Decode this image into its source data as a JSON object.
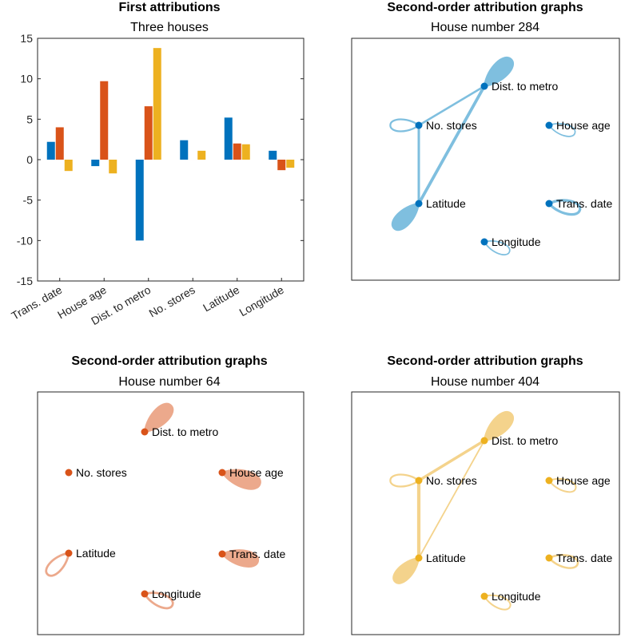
{
  "chart_data": [
    {
      "type": "bar",
      "title": "First attributions",
      "subtitle": "Three houses",
      "categories": [
        "Trans. date",
        "House age",
        "Dist. to metro",
        "No. stores",
        "Latitude",
        "Longitude"
      ],
      "ylim": [
        -15,
        15
      ],
      "yticks": [
        "15",
        "10",
        "5",
        "0",
        "-5",
        "-10",
        "-15"
      ],
      "ytick_values": [
        15,
        10,
        5,
        0,
        -5,
        -10,
        -15
      ],
      "series": [
        {
          "name": "House number 284",
          "color": "#0072BD",
          "values": [
            2.2,
            -0.8,
            -10.0,
            2.4,
            5.2,
            1.1
          ]
        },
        {
          "name": "House number 64",
          "color": "#D95319",
          "values": [
            4.0,
            9.7,
            6.6,
            0.0,
            2.0,
            -1.3
          ]
        },
        {
          "name": "House number 404",
          "color": "#EDB120",
          "values": [
            -1.4,
            -1.7,
            13.8,
            1.1,
            1.9,
            -1.0
          ]
        }
      ]
    },
    {
      "type": "graph",
      "title": "Second-order attribution graphs",
      "subtitle": "House number 284",
      "node_color": "#0072BD",
      "edge_color": "#7FBFDF",
      "nodes": [
        {
          "label": "Dist. to metro",
          "self_weight": 0.9
        },
        {
          "label": "No. stores",
          "self_weight": 0.25
        },
        {
          "label": "House age",
          "self_weight": 0.15
        },
        {
          "label": "Latitude",
          "self_weight": 0.7
        },
        {
          "label": "Trans. date",
          "self_weight": 0.45
        },
        {
          "label": "Longitude",
          "self_weight": 0.15
        }
      ],
      "edges": [
        {
          "from": "Dist. to metro",
          "to": "No. stores",
          "weight": 0.2
        },
        {
          "from": "Dist. to metro",
          "to": "Latitude",
          "weight": 0.35
        },
        {
          "from": "No. stores",
          "to": "Latitude",
          "weight": 0.25
        }
      ]
    },
    {
      "type": "graph",
      "title": "Second-order attribution graphs",
      "subtitle": "House number 64",
      "node_color": "#D95319",
      "edge_color": "#ECA98C",
      "nodes": [
        {
          "label": "Dist. to metro",
          "self_weight": 0.85
        },
        {
          "label": "No. stores",
          "self_weight": 0.0
        },
        {
          "label": "House age",
          "self_weight": 1.0
        },
        {
          "label": "Latitude",
          "self_weight": 0.35
        },
        {
          "label": "Trans. date",
          "self_weight": 0.8
        },
        {
          "label": "Longitude",
          "self_weight": 0.35
        }
      ],
      "edges": []
    },
    {
      "type": "graph",
      "title": "Second-order attribution graphs",
      "subtitle": "House number 404",
      "node_color": "#EDB120",
      "edge_color": "#F4D38C",
      "nodes": [
        {
          "label": "Dist. to metro",
          "self_weight": 0.9
        },
        {
          "label": "No. stores",
          "self_weight": 0.25
        },
        {
          "label": "House age",
          "self_weight": 0.2
        },
        {
          "label": "Latitude",
          "self_weight": 0.6
        },
        {
          "label": "Trans. date",
          "self_weight": 0.3
        },
        {
          "label": "Longitude",
          "self_weight": 0.2
        }
      ],
      "edges": [
        {
          "from": "Dist. to metro",
          "to": "No. stores",
          "weight": 0.3
        },
        {
          "from": "Dist. to metro",
          "to": "Latitude",
          "weight": 0.1
        },
        {
          "from": "No. stores",
          "to": "Latitude",
          "weight": 0.4
        }
      ]
    }
  ]
}
